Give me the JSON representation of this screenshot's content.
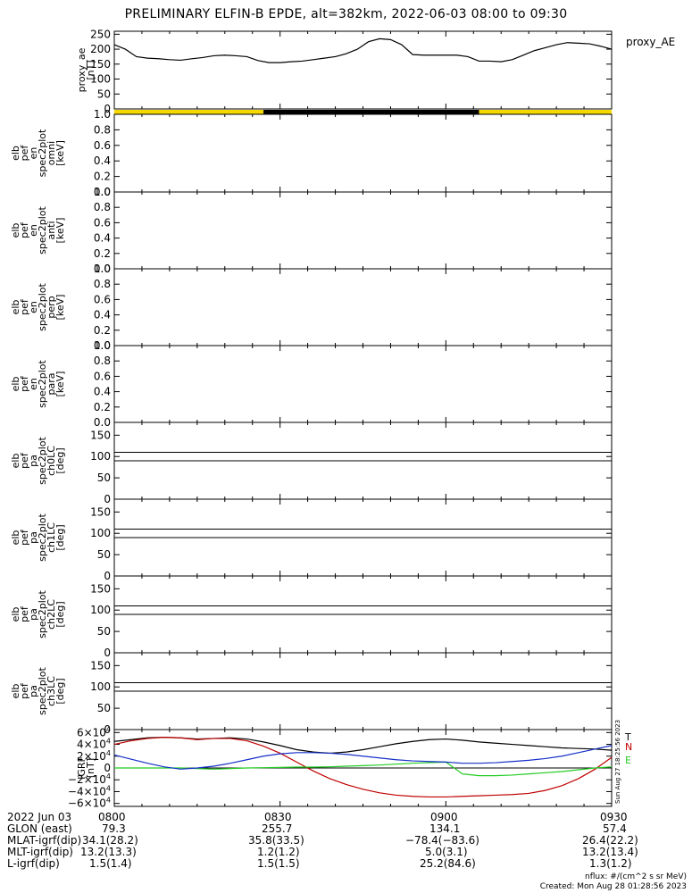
{
  "title": "PRELIMINARY ELFIN-B EPDE, alt=382km, 2022-06-03 08:00 to 09:30",
  "stamp": "Sun Aug 27 18:25:56 2023",
  "colors": {
    "ae_bar_yellow": "#f5d800",
    "ae_bar_black": "#000000",
    "T": "#000000",
    "N": "#c00000",
    "E": "#22cc22",
    "blue": "#1530c8"
  },
  "chart_data": [
    {
      "type": "line",
      "panel": "proxy_ae",
      "ylabel_lines": [
        "proxy_ae",
        "[nT]"
      ],
      "legend": "proxy_AE",
      "ylim": [
        0,
        260
      ],
      "yticks": [
        "0",
        "50",
        "100",
        "150",
        "200",
        "250"
      ],
      "x_minutes": [
        0,
        2,
        4,
        6,
        8,
        10,
        12,
        14,
        16,
        18,
        20,
        22,
        24,
        26,
        28,
        30,
        32,
        34,
        36,
        38,
        40,
        42,
        44,
        46,
        48,
        50,
        52,
        54,
        56,
        58,
        60,
        62,
        64,
        66,
        68,
        70,
        72,
        74,
        76,
        78,
        80,
        82,
        84,
        86,
        88,
        90
      ],
      "values": [
        215,
        200,
        175,
        170,
        168,
        165,
        163,
        168,
        172,
        178,
        180,
        178,
        175,
        162,
        155,
        155,
        158,
        160,
        165,
        170,
        175,
        185,
        200,
        225,
        235,
        232,
        215,
        182,
        180,
        180,
        180,
        180,
        175,
        160,
        160,
        158,
        165,
        180,
        195,
        205,
        215,
        222,
        220,
        218,
        210,
        200
      ],
      "status_bar": [
        {
          "from": 0,
          "to": 27,
          "state": "yellow"
        },
        {
          "from": 27,
          "to": 66,
          "state": "black"
        },
        {
          "from": 66,
          "to": 90,
          "state": "yellow"
        }
      ]
    },
    {
      "type": "heatmap",
      "panel": "omni",
      "ylabel_lines": [
        "elb",
        "pef",
        "en",
        "spec2plot",
        "omni",
        "[keV]"
      ],
      "ylim": [
        0,
        1.0
      ],
      "yticks": [
        "0.0",
        "0.2",
        "0.4",
        "0.6",
        "0.8",
        "1.0"
      ],
      "values": []
    },
    {
      "type": "heatmap",
      "panel": "anti",
      "ylabel_lines": [
        "elb",
        "pef",
        "en",
        "spec2plot",
        "anti",
        "[keV]"
      ],
      "ylim": [
        0,
        1.0
      ],
      "yticks": [
        "0.0",
        "0.2",
        "0.4",
        "0.6",
        "0.8",
        "1.0"
      ],
      "values": []
    },
    {
      "type": "heatmap",
      "panel": "perp",
      "ylabel_lines": [
        "elb",
        "pef",
        "en",
        "spec2plot",
        "perp",
        "[keV]"
      ],
      "ylim": [
        0,
        1.0
      ],
      "yticks": [
        "0.0",
        "0.2",
        "0.4",
        "0.6",
        "0.8",
        "1.0"
      ],
      "values": []
    },
    {
      "type": "heatmap",
      "panel": "para",
      "ylabel_lines": [
        "elb",
        "pef",
        "en",
        "spec2plot",
        "para",
        "[keV]"
      ],
      "ylim": [
        0,
        1.0
      ],
      "yticks": [
        "0.0",
        "0.2",
        "0.4",
        "0.6",
        "0.8",
        "1.0"
      ],
      "values": []
    },
    {
      "type": "heatmap",
      "panel": "ch0LC",
      "ylabel_lines": [
        "elb",
        "pef",
        "pa",
        "spec2plot",
        "ch0LC",
        "[deg]"
      ],
      "ylim": [
        0,
        180
      ],
      "yticks": [
        "0",
        "50",
        "100",
        "150"
      ],
      "hlines": [
        90,
        110
      ],
      "values": []
    },
    {
      "type": "heatmap",
      "panel": "ch1LC",
      "ylabel_lines": [
        "elb",
        "pef",
        "pa",
        "spec2plot",
        "ch1LC",
        "[deg]"
      ],
      "ylim": [
        0,
        180
      ],
      "yticks": [
        "0",
        "50",
        "100",
        "150"
      ],
      "hlines": [
        90,
        110
      ],
      "values": []
    },
    {
      "type": "heatmap",
      "panel": "ch2LC",
      "ylabel_lines": [
        "elb",
        "pef",
        "pa",
        "spec2plot",
        "ch2LC",
        "[deg]"
      ],
      "ylim": [
        0,
        180
      ],
      "yticks": [
        "0",
        "50",
        "100",
        "150"
      ],
      "hlines": [
        90,
        110
      ],
      "values": []
    },
    {
      "type": "heatmap",
      "panel": "ch3LC",
      "ylabel_lines": [
        "elb",
        "pef",
        "pa",
        "spec2plot",
        "ch3LC",
        "[deg]"
      ],
      "ylim": [
        0,
        180
      ],
      "yticks": [
        "0",
        "50",
        "100",
        "150"
      ],
      "hlines": [
        90,
        110
      ],
      "values": []
    },
    {
      "type": "line",
      "panel": "bigrf",
      "ylabel_lines": [
        "IGRF",
        "[nT]"
      ],
      "ylim": [
        -65000,
        65000
      ],
      "yticks": [
        {
          "v": 60000,
          "m": "6×10",
          "e": "4"
        },
        {
          "v": 40000,
          "m": "4×10",
          "e": "4"
        },
        {
          "v": 20000,
          "m": "2×10",
          "e": "4"
        },
        {
          "v": 0,
          "m": "0",
          "e": ""
        },
        {
          "v": -20000,
          "m": "−2×10",
          "e": "4"
        },
        {
          "v": -40000,
          "m": "−4×10",
          "e": "4"
        },
        {
          "v": -60000,
          "m": "−6×10",
          "e": "4"
        }
      ],
      "x_minutes": [
        0,
        3,
        6,
        9,
        12,
        15,
        18,
        21,
        24,
        27,
        30,
        33,
        36,
        39,
        42,
        45,
        48,
        51,
        54,
        57,
        60,
        63,
        66,
        69,
        72,
        75,
        78,
        81,
        84,
        87,
        90
      ],
      "series": [
        {
          "name": "T",
          "color": "#000000",
          "values": [
            45000,
            48000,
            51000,
            52000,
            51000,
            49000,
            50000,
            51000,
            49000,
            44000,
            38000,
            31000,
            27000,
            25000,
            27000,
            31000,
            36000,
            41000,
            45000,
            48000,
            49000,
            47000,
            44000,
            42000,
            40000,
            38000,
            36000,
            34000,
            33000,
            32000,
            30000
          ]
        },
        {
          "name": "N",
          "color": "#c00000",
          "values": [
            40000,
            46000,
            50000,
            52000,
            51000,
            48000,
            50000,
            50000,
            46000,
            37000,
            25000,
            10000,
            -5000,
            -18000,
            -28000,
            -36000,
            -42000,
            -46000,
            -48000,
            -49000,
            -49000,
            -48000,
            -47000,
            -46000,
            -45000,
            -43000,
            -38000,
            -30000,
            -18000,
            -2000,
            18000
          ]
        },
        {
          "name": "E",
          "color": "#22cc22",
          "values": [
            0,
            0,
            0,
            0,
            0,
            -1000,
            -2000,
            -1000,
            0,
            500,
            1000,
            1500,
            1500,
            2000,
            3000,
            4000,
            5000,
            6500,
            8000,
            9000,
            10000,
            -10000,
            -13000,
            -13000,
            -12000,
            -10000,
            -8000,
            -6000,
            -3000,
            0,
            2000
          ]
        },
        {
          "name": "",
          "color": "#1530c8",
          "values": [
            22000,
            15000,
            8000,
            2000,
            -2000,
            0,
            3000,
            8000,
            14000,
            20000,
            24000,
            26000,
            26000,
            25000,
            23000,
            20000,
            17000,
            14000,
            12000,
            11000,
            10000,
            8000,
            8000,
            9000,
            11000,
            13000,
            16000,
            20000,
            26000,
            32000,
            38000
          ]
        }
      ],
      "legend": [
        "T",
        "N",
        "E"
      ]
    }
  ],
  "x_axis": {
    "date_label": "2022 Jun 03",
    "times": [
      "0800",
      "0830",
      "0900",
      "0930"
    ],
    "rows": [
      {
        "label": "GLON (east)",
        "values": [
          "79.3",
          "255.7",
          "134.1",
          "57.4"
        ]
      },
      {
        "label": "MLAT-igrf(dip)",
        "values": [
          "34.1(28.2)",
          "35.8(33.5)",
          "−78.4(−83.6)",
          "26.4(22.2)"
        ]
      },
      {
        "label": "MLT-igrf(dip)",
        "values": [
          "13.2(13.3)",
          "1.2(1.2)",
          "5.0(3.1)",
          "13.2(13.4)"
        ]
      },
      {
        "label": "L-igrf(dip)",
        "values": [
          "1.5(1.4)",
          "1.5(1.5)",
          "25.2(84.6)",
          "1.3(1.2)"
        ]
      }
    ]
  },
  "footer": {
    "units": "nflux: #/(cm^2 s sr MeV)",
    "created": "Created: Mon Aug 28 01:28:56 2023"
  }
}
